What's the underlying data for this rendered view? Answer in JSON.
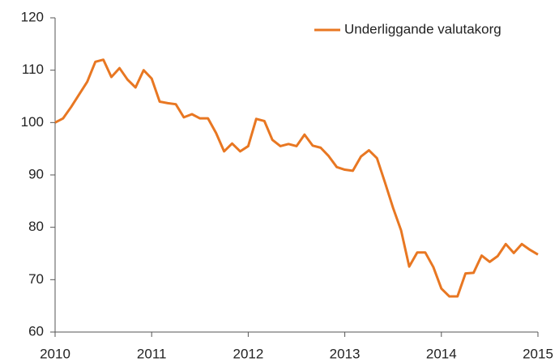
{
  "chart_data": {
    "type": "line",
    "x": [
      2010,
      2010.083,
      2010.167,
      2010.25,
      2010.333,
      2010.417,
      2010.5,
      2010.583,
      2010.667,
      2010.75,
      2010.833,
      2010.917,
      2011,
      2011.083,
      2011.167,
      2011.25,
      2011.333,
      2011.417,
      2011.5,
      2011.583,
      2011.667,
      2011.75,
      2011.833,
      2011.917,
      2012,
      2012.083,
      2012.167,
      2012.25,
      2012.333,
      2012.417,
      2012.5,
      2012.583,
      2012.667,
      2012.75,
      2012.833,
      2012.917,
      2013,
      2013.083,
      2013.167,
      2013.25,
      2013.333,
      2013.417,
      2013.5,
      2013.583,
      2013.667,
      2013.75,
      2013.833,
      2013.917,
      2014,
      2014.083,
      2014.167,
      2014.25,
      2014.333,
      2014.417,
      2014.5,
      2014.583,
      2014.667,
      2014.75,
      2014.833,
      2014.917,
      2015
    ],
    "series": [
      {
        "name": "Underliggande valutakorg",
        "color": "#e87722",
        "values": [
          100,
          100.8,
          103,
          105.4,
          107.8,
          111.6,
          112,
          108.7,
          110.4,
          108.2,
          106.7,
          110,
          108.4,
          104,
          103.7,
          103.5,
          101,
          101.6,
          100.8,
          100.8,
          98,
          94.5,
          96,
          94.5,
          95.5,
          100.7,
          100.3,
          96.7,
          95.5,
          95.9,
          95.5,
          97.7,
          95.6,
          95.2,
          93.6,
          91.5,
          91,
          90.8,
          93.5,
          94.7,
          93.2,
          88.5,
          83.7,
          79.4,
          72.5,
          75.2,
          75.2,
          72.4,
          68.3,
          66.8,
          66.8,
          71.2,
          71.3,
          74.6,
          73.4,
          74.5,
          76.8,
          75.1,
          76.8,
          75.7,
          74.8
        ]
      }
    ],
    "xlim": [
      2010,
      2015
    ],
    "xticks": [
      2010,
      2011,
      2012,
      2013,
      2014,
      2015
    ],
    "ylim": [
      60,
      120
    ],
    "yticks": [
      60,
      70,
      80,
      90,
      100,
      110,
      120
    ],
    "legend": "upper right"
  }
}
